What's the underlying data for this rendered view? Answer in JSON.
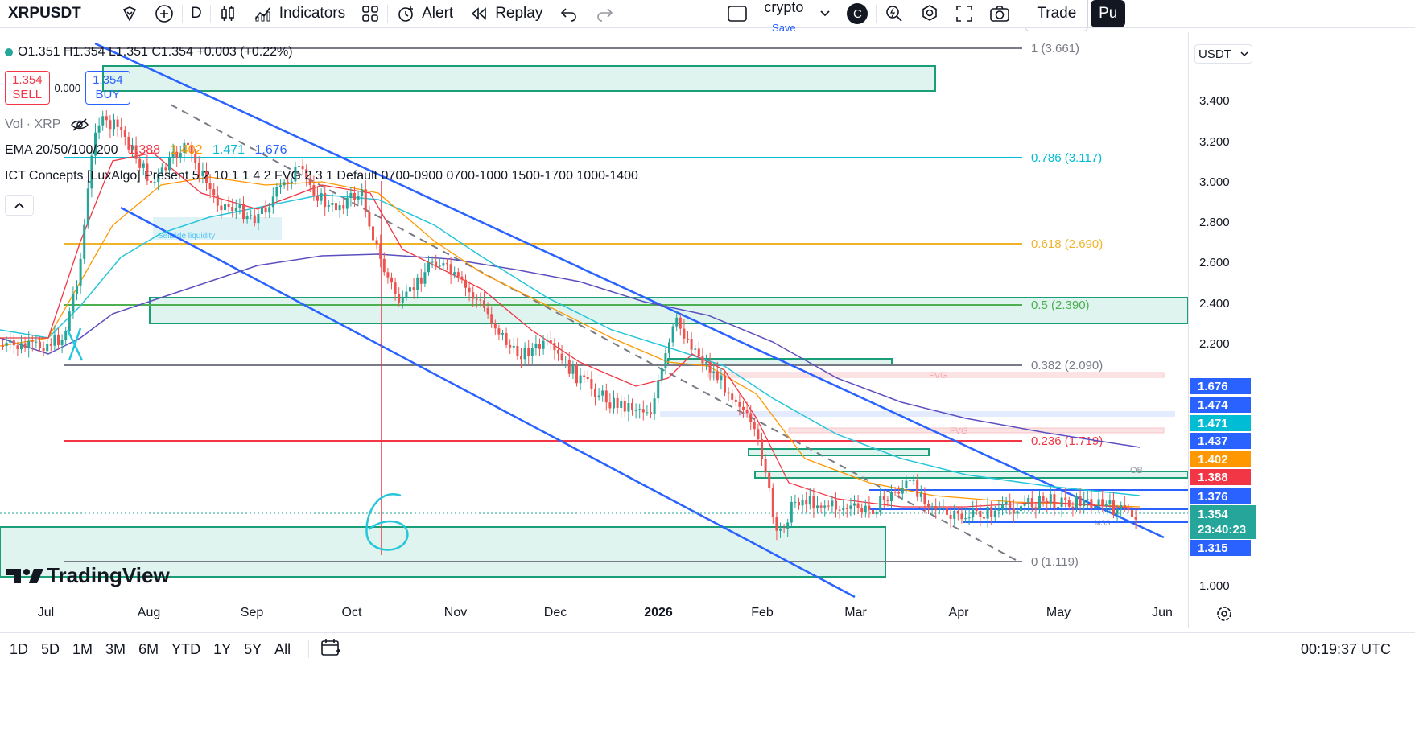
{
  "toolbar": {
    "symbol": "XRPUSDT",
    "interval": "D",
    "indicators_label": "Indicators",
    "alert_label": "Alert",
    "replay_label": "Replay",
    "layout_name": "crypto",
    "layout_save": "Save",
    "avatar_letter": "C",
    "trade_label": "Trade",
    "publish_label": "Pu"
  },
  "legend": {
    "ohlc": "O1.351 H1.354 L1.351 C1.354 +0.003 (+0.22%)",
    "sell_price": "1.354",
    "sell_label": "SELL",
    "spread": "0.000",
    "buy_price": "1.354",
    "buy_label": "BUY",
    "volume": "Vol · XRP",
    "ema_label": "EMA 20/50/100/200",
    "ema_values": [
      "1.388",
      "1.402",
      "1.471",
      "1.676"
    ],
    "ema_colors": [
      "#f23645",
      "#ff9800",
      "#00bcd4",
      "#2962ff"
    ],
    "ict": "ICT Concepts [LuxAlgo] Present 5 2 10 1 1 4 2 FVG 2 3 1 Default 0700-0900 0700-1000 1500-1700 1000-1400"
  },
  "price_scale": {
    "currency": "USDT",
    "ticks": [
      "3.400",
      "3.200",
      "3.000",
      "2.800",
      "2.600",
      "2.400",
      "2.200",
      "1.000"
    ]
  },
  "price_badges": [
    {
      "value": "1.676",
      "color": "#2962ff"
    },
    {
      "value": "1.474",
      "color": "#2962ff"
    },
    {
      "value": "1.471",
      "color": "#00bcd4"
    },
    {
      "value": "1.437",
      "color": "#2962ff"
    },
    {
      "value": "1.402",
      "color": "#ff9800"
    },
    {
      "value": "1.388",
      "color": "#f23645"
    },
    {
      "value": "1.376",
      "color": "#2962ff"
    },
    {
      "value": "1.354",
      "color": "#26a69a"
    },
    {
      "value": "23:40:23",
      "color": "#26a69a"
    },
    {
      "value": "1.315",
      "color": "#2962ff"
    }
  ],
  "fib_levels": [
    {
      "label": "1 (3.661)",
      "color": "#787b86"
    },
    {
      "label": "0.786 (3.117)",
      "color": "#00bcd4"
    },
    {
      "label": "0.618 (2.690)",
      "color": "#f0b429"
    },
    {
      "label": "0.5 (2.390)",
      "color": "#4caf50"
    },
    {
      "label": "0.382 (2.090)",
      "color": "#787b86"
    },
    {
      "label": "0.236 (1.719)",
      "color": "#f23645"
    },
    {
      "label": "0 (1.119)",
      "color": "#787b86"
    }
  ],
  "chart_annotations": {
    "fvg": "FVG",
    "ob": "OB",
    "sellside": "Sellside liquidity",
    "mss": "MSS"
  },
  "time_axis": [
    "Jul",
    "Aug",
    "Sep",
    "Oct",
    "Nov",
    "Dec",
    "2026",
    "Feb",
    "Mar",
    "Apr",
    "May",
    "Jun"
  ],
  "bottom_bar": {
    "ranges": [
      "1D",
      "5D",
      "1M",
      "3M",
      "6M",
      "YTD",
      "1Y",
      "5Y",
      "All"
    ],
    "clock": "00:19:37 UTC"
  },
  "watermark": "TradingView"
}
